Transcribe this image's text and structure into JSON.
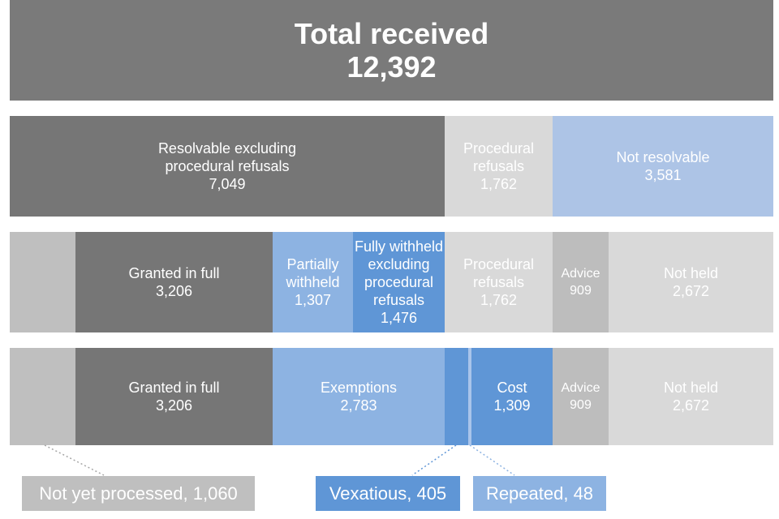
{
  "colors": {
    "dark_grey": "#767676",
    "light_grey": "#d9d9d9",
    "mid_grey": "#bfbfbf",
    "advice_grey": "#bdbdbd",
    "light_blue": "#adc4e6",
    "mid_blue": "#8db3e2",
    "blue": "#5f96d6"
  },
  "total": {
    "label": "Total received",
    "value": "12,392"
  },
  "row1": [
    {
      "label": "Resolvable excluding\nprocedural refusals",
      "value": "7,049"
    },
    {
      "label": "Procedural\nrefusals",
      "value": "1,762"
    },
    {
      "label": "Not resolvable",
      "value": "3,581"
    }
  ],
  "row2": [
    {
      "label": "Granted in full",
      "value": "3,206"
    },
    {
      "label": "Partially\nwithheld",
      "value": "1,307"
    },
    {
      "label": "Fully withheld\nexcluding\nprocedural\nrefusals",
      "value": "1,476"
    },
    {
      "label": "Procedural\nrefusals",
      "value": "1,762"
    },
    {
      "label": "Advice",
      "value": "909"
    },
    {
      "label": "Not held",
      "value": "2,672"
    }
  ],
  "row3": [
    {
      "label": "Granted in full",
      "value": "3,206"
    },
    {
      "label": "Exemptions",
      "value": "2,783"
    },
    {
      "label": "Cost",
      "value": "1,309"
    },
    {
      "label": "Advice",
      "value": "909"
    },
    {
      "label": "Not held",
      "value": "2,672"
    }
  ],
  "callouts": {
    "not_yet_processed": "Not yet processed, 1,060",
    "vexatious": "Vexatious, 405",
    "repeated": "Repeated, 48"
  }
}
